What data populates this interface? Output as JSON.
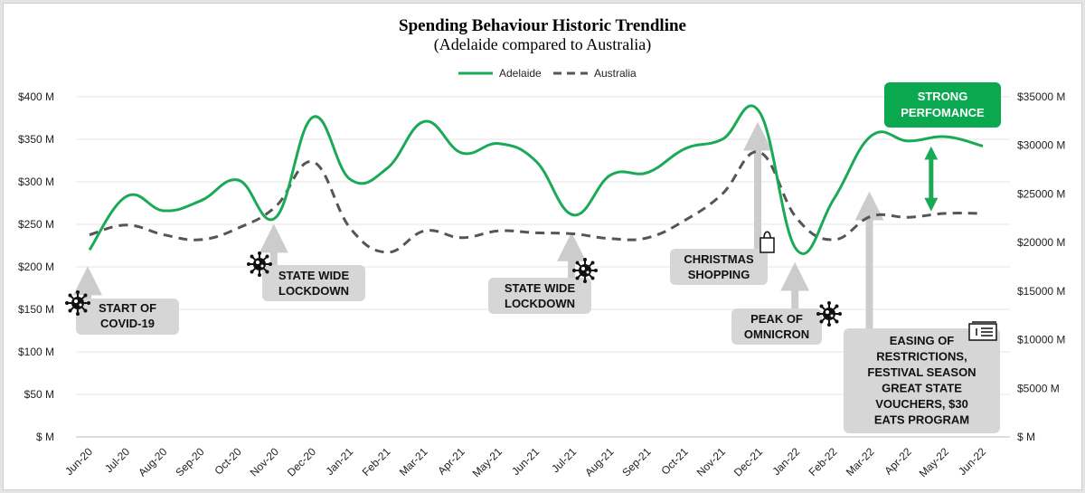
{
  "chart_data": {
    "type": "line",
    "title": "Spending Behaviour Historic Trendline",
    "subtitle": "(Adelaide compared to Australia)",
    "categories": [
      "Jun-20",
      "Jul-20",
      "Aug-20",
      "Sep-20",
      "Oct-20",
      "Nov-20",
      "Dec-20",
      "Jan-21",
      "Feb-21",
      "Mar-21",
      "Apr-21",
      "May-21",
      "Jun-21",
      "Jul-21",
      "Aug-21",
      "Sep-21",
      "Oct-21",
      "Nov-21",
      "Dec-21",
      "Jan-22",
      "Feb-22",
      "Mar-22",
      "Apr-22",
      "May-22",
      "Jun-22"
    ],
    "series": [
      {
        "name": "Adelaide",
        "axis": "left",
        "color": "#1aaa55",
        "style": "solid",
        "values": [
          220,
          283,
          266,
          278,
          302,
          258,
          376,
          303,
          316,
          371,
          334,
          345,
          324,
          261,
          308,
          311,
          339,
          350,
          382,
          220,
          280,
          354,
          348,
          353,
          342
        ]
      },
      {
        "name": "Australia",
        "axis": "right",
        "color": "#555555",
        "style": "dashed",
        "values": [
          20800,
          21800,
          20800,
          20300,
          21500,
          23700,
          28300,
          21500,
          19000,
          21200,
          20500,
          21200,
          21000,
          20900,
          20400,
          20500,
          22300,
          25000,
          29300,
          22500,
          20300,
          22700,
          22600,
          23000,
          23000
        ]
      }
    ],
    "y_left": {
      "min": 0,
      "max": 400,
      "step": 50,
      "ticks": [
        "$ M",
        "$50 M",
        "$100 M",
        "$150 M",
        "$200 M",
        "$250 M",
        "$300 M",
        "$350 M",
        "$400 M"
      ]
    },
    "y_right": {
      "min": 0,
      "max": 35000,
      "step": 5000,
      "ticks": [
        "$ M",
        "$5000 M",
        "$10000 M",
        "$15000 M",
        "$20000 M",
        "$25000 M",
        "$30000 M",
        "$35000 M"
      ]
    },
    "legend_position": "top-center",
    "grid": true,
    "annotations": [
      {
        "id": "covid-start",
        "lines": [
          "START OF",
          "COVID-19"
        ],
        "arrow_month": "Jun-20",
        "arrow_target": 190,
        "icon": "virus"
      },
      {
        "id": "lockdown-1",
        "lines": [
          "STATE WIDE",
          "LOCKDOWN"
        ],
        "arrow_month": "Nov-20",
        "arrow_target": 240,
        "icon": "virus"
      },
      {
        "id": "lockdown-2",
        "lines": [
          "STATE WIDE",
          "LOCKDOWN"
        ],
        "arrow_month": "Jul-21",
        "arrow_target": 230,
        "icon": "virus"
      },
      {
        "id": "christmas",
        "lines": [
          "CHRISTMAS",
          "SHOPPING"
        ],
        "arrow_month": "Dec-21",
        "arrow_target": 360,
        "icon": "shopping-bag"
      },
      {
        "id": "omicron",
        "lines": [
          "PEAK OF",
          "OMNICRON"
        ],
        "arrow_month": "Jan-22",
        "arrow_target": 195,
        "icon": "virus"
      },
      {
        "id": "easing",
        "lines": [
          "EASING OF",
          "RESTRICTIONS,",
          "FESTIVAL SEASON",
          "GREAT STATE",
          "VOUCHERS, $30",
          "EATS PROGRAM"
        ],
        "arrow_month": "Mar-22",
        "arrow_target": 278,
        "icon": "voucher"
      },
      {
        "id": "strong",
        "lines": [
          "STRONG",
          "PERFOMANCE"
        ],
        "arrow_month": "May-22",
        "arrow_range": [
          270,
          337
        ],
        "icon": "none"
      }
    ]
  }
}
